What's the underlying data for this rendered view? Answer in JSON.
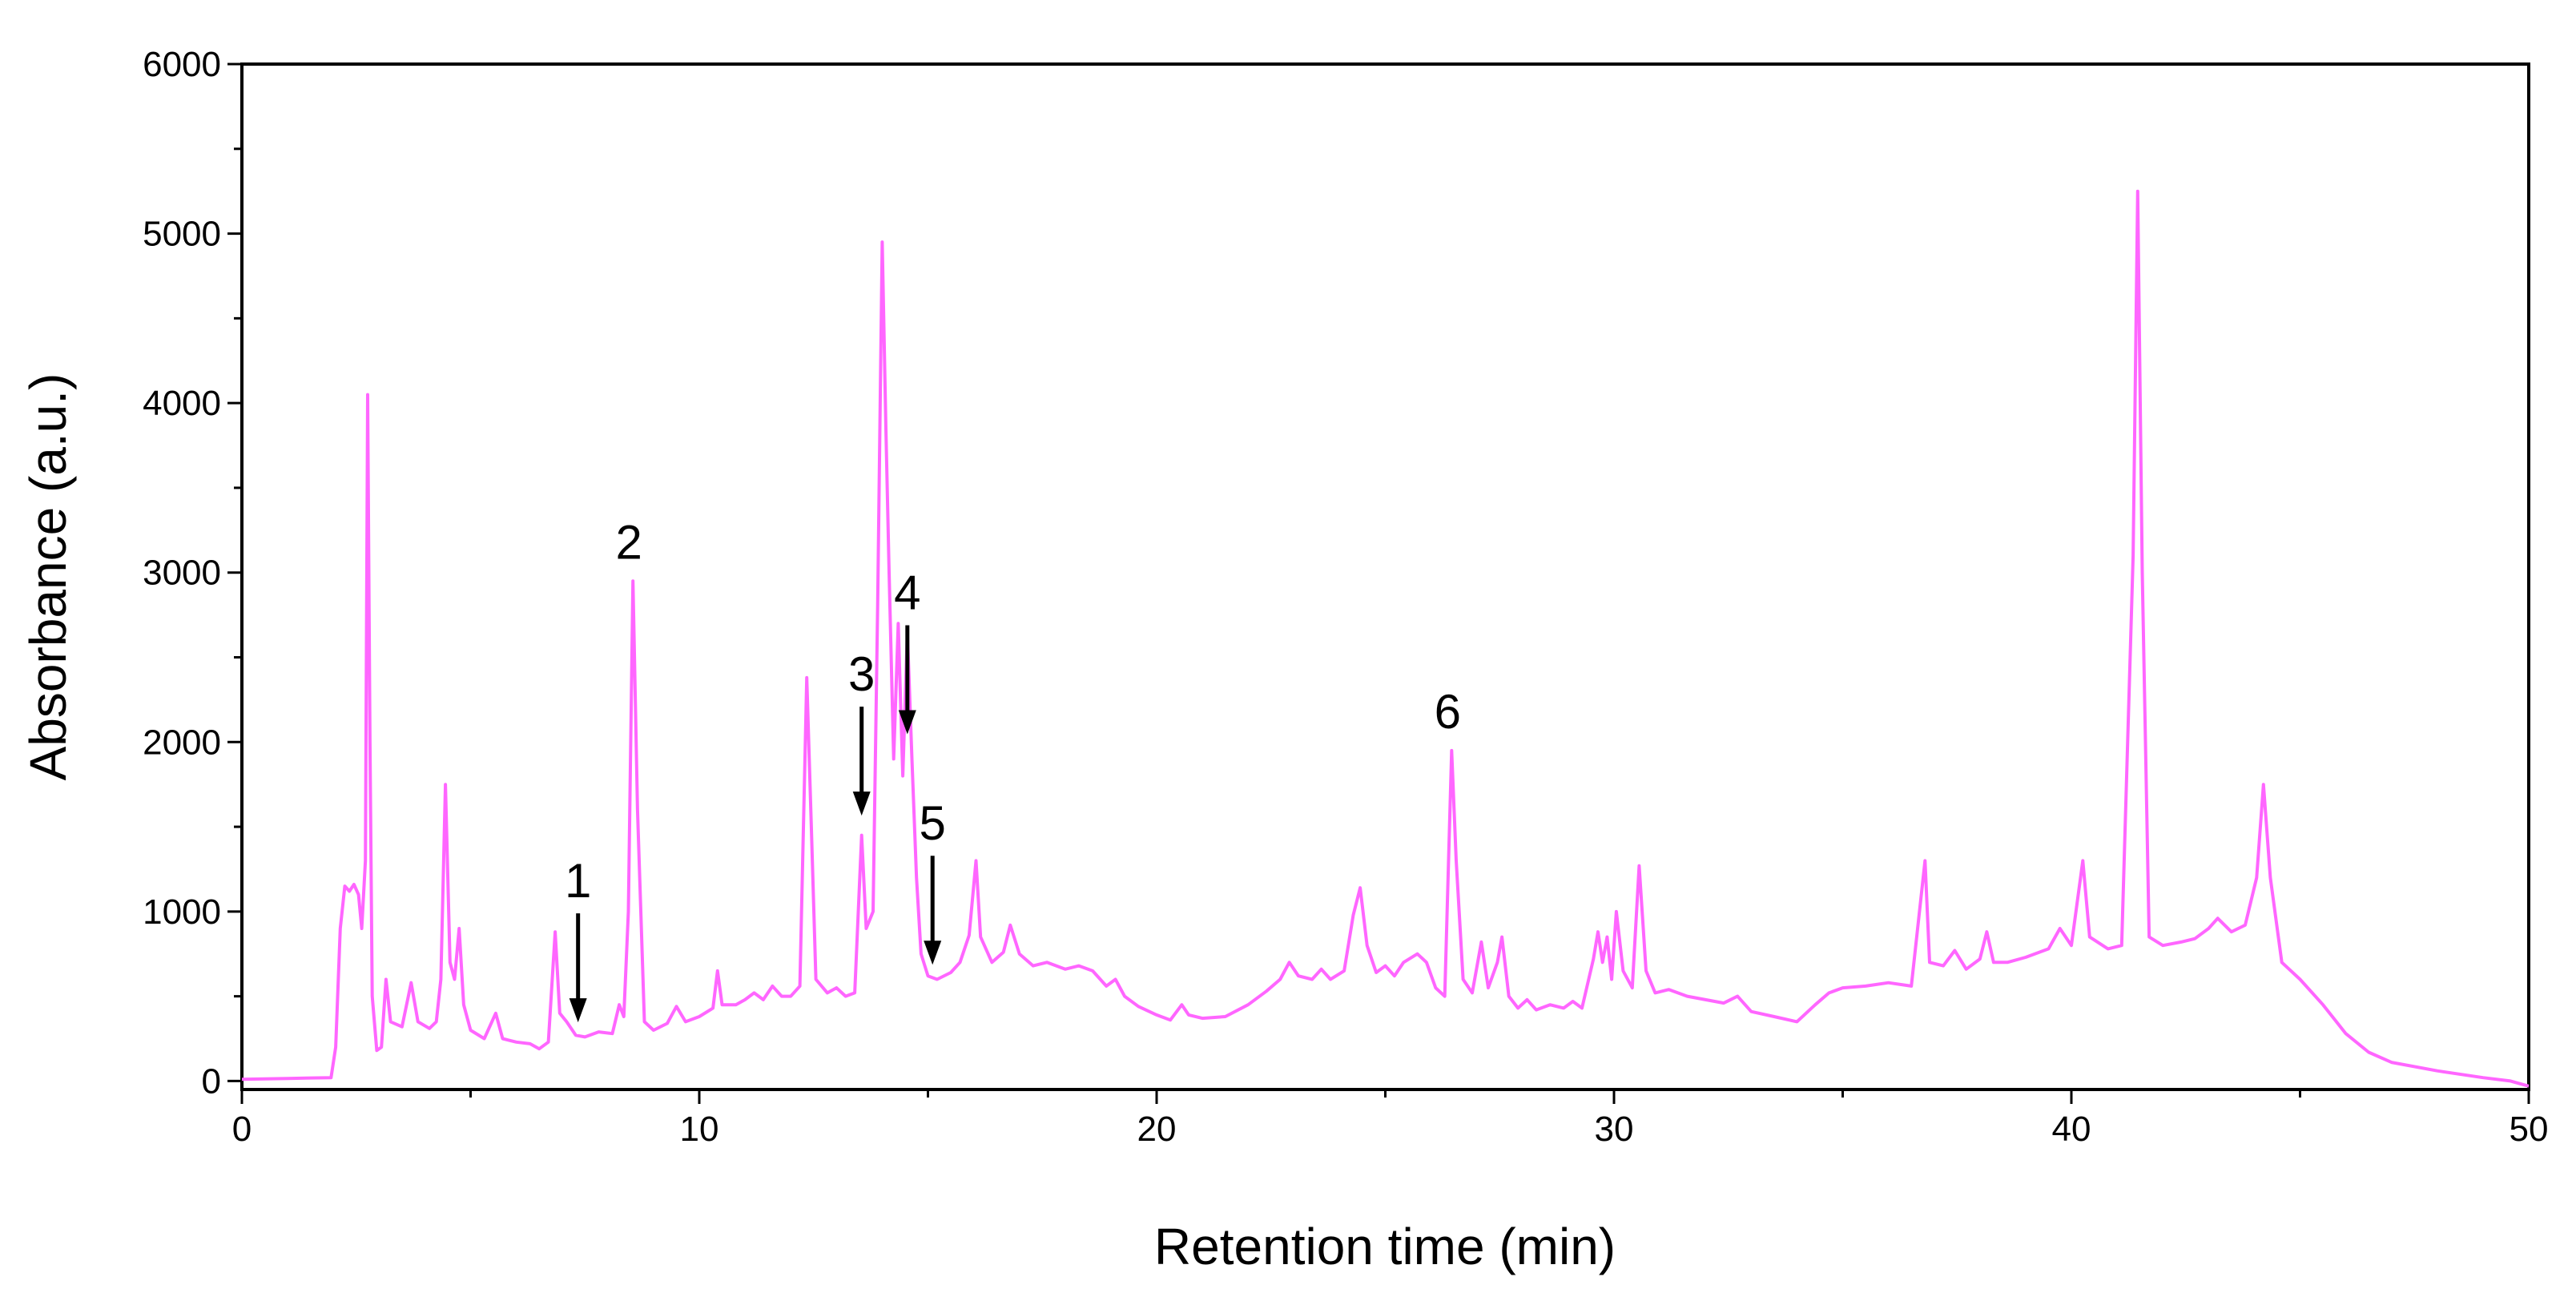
{
  "colors": {
    "trace": "#FF66FF",
    "axis": "#000000",
    "background": "#FFFFFF"
  },
  "chart_data": {
    "type": "line",
    "xlabel": "Retention time (min)",
    "ylabel": "Absorbance (a.u.)",
    "xlim": [
      0,
      50
    ],
    "ylim": [
      -50,
      6000
    ],
    "xticks": [
      0,
      10,
      20,
      30,
      40,
      50
    ],
    "yticks": [
      0,
      1000,
      2000,
      3000,
      4000,
      5000,
      6000
    ],
    "grid": false,
    "legend": "none",
    "series": [
      {
        "color": "#FF66FF",
        "points": [
          [
            0,
            10
          ],
          [
            1.0,
            15
          ],
          [
            1.95,
            20
          ],
          [
            2.05,
            200
          ],
          [
            2.15,
            900
          ],
          [
            2.25,
            1150
          ],
          [
            2.35,
            1120
          ],
          [
            2.45,
            1160
          ],
          [
            2.55,
            1100
          ],
          [
            2.62,
            900
          ],
          [
            2.7,
            1300
          ],
          [
            2.75,
            4050
          ],
          [
            2.8,
            2000
          ],
          [
            2.85,
            500
          ],
          [
            2.95,
            180
          ],
          [
            3.05,
            200
          ],
          [
            3.15,
            600
          ],
          [
            3.25,
            350
          ],
          [
            3.5,
            320
          ],
          [
            3.7,
            580
          ],
          [
            3.85,
            350
          ],
          [
            4.1,
            310
          ],
          [
            4.25,
            350
          ],
          [
            4.35,
            600
          ],
          [
            4.45,
            1750
          ],
          [
            4.55,
            700
          ],
          [
            4.65,
            600
          ],
          [
            4.75,
            900
          ],
          [
            4.85,
            450
          ],
          [
            5.0,
            300
          ],
          [
            5.3,
            250
          ],
          [
            5.55,
            400
          ],
          [
            5.7,
            250
          ],
          [
            6.0,
            230
          ],
          [
            6.3,
            220
          ],
          [
            6.5,
            190
          ],
          [
            6.7,
            230
          ],
          [
            6.85,
            880
          ],
          [
            6.95,
            400
          ],
          [
            7.1,
            350
          ],
          [
            7.3,
            270
          ],
          [
            7.5,
            260
          ],
          [
            7.8,
            290
          ],
          [
            8.1,
            280
          ],
          [
            8.25,
            450
          ],
          [
            8.35,
            380
          ],
          [
            8.45,
            1000
          ],
          [
            8.55,
            2950
          ],
          [
            8.65,
            1600
          ],
          [
            8.8,
            350
          ],
          [
            9.0,
            300
          ],
          [
            9.3,
            340
          ],
          [
            9.5,
            440
          ],
          [
            9.7,
            350
          ],
          [
            10.0,
            380
          ],
          [
            10.3,
            430
          ],
          [
            10.4,
            650
          ],
          [
            10.5,
            450
          ],
          [
            10.8,
            450
          ],
          [
            11.0,
            480
          ],
          [
            11.2,
            520
          ],
          [
            11.4,
            480
          ],
          [
            11.6,
            560
          ],
          [
            11.8,
            500
          ],
          [
            12.0,
            500
          ],
          [
            12.2,
            560
          ],
          [
            12.35,
            2380
          ],
          [
            12.45,
            1500
          ],
          [
            12.55,
            600
          ],
          [
            12.8,
            520
          ],
          [
            13.0,
            550
          ],
          [
            13.2,
            500
          ],
          [
            13.4,
            520
          ],
          [
            13.55,
            1450
          ],
          [
            13.65,
            900
          ],
          [
            13.8,
            1000
          ],
          [
            13.9,
            2800
          ],
          [
            14.0,
            4950
          ],
          [
            14.08,
            3850
          ],
          [
            14.15,
            3000
          ],
          [
            14.25,
            1900
          ],
          [
            14.35,
            2700
          ],
          [
            14.45,
            1800
          ],
          [
            14.55,
            2650
          ],
          [
            14.65,
            1900
          ],
          [
            14.75,
            1200
          ],
          [
            14.85,
            750
          ],
          [
            15.0,
            620
          ],
          [
            15.2,
            600
          ],
          [
            15.5,
            640
          ],
          [
            15.7,
            700
          ],
          [
            15.9,
            860
          ],
          [
            16.05,
            1300
          ],
          [
            16.15,
            850
          ],
          [
            16.4,
            700
          ],
          [
            16.65,
            760
          ],
          [
            16.8,
            920
          ],
          [
            17.0,
            750
          ],
          [
            17.3,
            680
          ],
          [
            17.6,
            700
          ],
          [
            18.0,
            660
          ],
          [
            18.3,
            680
          ],
          [
            18.6,
            650
          ],
          [
            18.9,
            560
          ],
          [
            19.1,
            600
          ],
          [
            19.3,
            500
          ],
          [
            19.6,
            440
          ],
          [
            20.0,
            390
          ],
          [
            20.3,
            360
          ],
          [
            20.55,
            450
          ],
          [
            20.7,
            390
          ],
          [
            21.0,
            370
          ],
          [
            21.5,
            380
          ],
          [
            22.0,
            450
          ],
          [
            22.4,
            530
          ],
          [
            22.7,
            600
          ],
          [
            22.9,
            700
          ],
          [
            23.1,
            620
          ],
          [
            23.4,
            600
          ],
          [
            23.6,
            660
          ],
          [
            23.8,
            600
          ],
          [
            24.1,
            650
          ],
          [
            24.3,
            980
          ],
          [
            24.45,
            1140
          ],
          [
            24.6,
            800
          ],
          [
            24.8,
            640
          ],
          [
            25.0,
            680
          ],
          [
            25.2,
            620
          ],
          [
            25.4,
            700
          ],
          [
            25.7,
            750
          ],
          [
            25.9,
            700
          ],
          [
            26.1,
            550
          ],
          [
            26.3,
            500
          ],
          [
            26.45,
            1950
          ],
          [
            26.55,
            1300
          ],
          [
            26.7,
            600
          ],
          [
            26.9,
            520
          ],
          [
            27.1,
            820
          ],
          [
            27.25,
            550
          ],
          [
            27.45,
            700
          ],
          [
            27.55,
            850
          ],
          [
            27.7,
            500
          ],
          [
            27.9,
            430
          ],
          [
            28.1,
            480
          ],
          [
            28.3,
            420
          ],
          [
            28.6,
            450
          ],
          [
            28.9,
            430
          ],
          [
            29.1,
            470
          ],
          [
            29.3,
            430
          ],
          [
            29.55,
            720
          ],
          [
            29.65,
            880
          ],
          [
            29.75,
            700
          ],
          [
            29.85,
            850
          ],
          [
            29.95,
            600
          ],
          [
            30.05,
            1000
          ],
          [
            30.2,
            650
          ],
          [
            30.4,
            550
          ],
          [
            30.55,
            1270
          ],
          [
            30.7,
            650
          ],
          [
            30.9,
            520
          ],
          [
            31.2,
            540
          ],
          [
            31.6,
            500
          ],
          [
            32.0,
            480
          ],
          [
            32.4,
            460
          ],
          [
            32.7,
            500
          ],
          [
            33.0,
            410
          ],
          [
            33.5,
            380
          ],
          [
            34.0,
            350
          ],
          [
            34.4,
            450
          ],
          [
            34.7,
            520
          ],
          [
            35.0,
            550
          ],
          [
            35.5,
            560
          ],
          [
            36.0,
            580
          ],
          [
            36.5,
            560
          ],
          [
            36.8,
            1300
          ],
          [
            36.9,
            700
          ],
          [
            37.2,
            680
          ],
          [
            37.45,
            770
          ],
          [
            37.7,
            660
          ],
          [
            38.0,
            720
          ],
          [
            38.15,
            880
          ],
          [
            38.3,
            700
          ],
          [
            38.6,
            700
          ],
          [
            39.0,
            730
          ],
          [
            39.5,
            780
          ],
          [
            39.75,
            900
          ],
          [
            40.0,
            800
          ],
          [
            40.25,
            1300
          ],
          [
            40.4,
            850
          ],
          [
            40.8,
            780
          ],
          [
            41.1,
            800
          ],
          [
            41.35,
            3100
          ],
          [
            41.45,
            5250
          ],
          [
            41.55,
            3000
          ],
          [
            41.7,
            850
          ],
          [
            42.0,
            800
          ],
          [
            42.4,
            820
          ],
          [
            42.7,
            840
          ],
          [
            43.0,
            900
          ],
          [
            43.2,
            960
          ],
          [
            43.5,
            880
          ],
          [
            43.8,
            920
          ],
          [
            44.05,
            1200
          ],
          [
            44.2,
            1750
          ],
          [
            44.35,
            1200
          ],
          [
            44.6,
            700
          ],
          [
            45.0,
            600
          ],
          [
            45.5,
            450
          ],
          [
            46.0,
            280
          ],
          [
            46.5,
            170
          ],
          [
            47.0,
            110
          ],
          [
            48.0,
            60
          ],
          [
            49.0,
            20
          ],
          [
            49.6,
            0
          ],
          [
            50.0,
            -30
          ]
        ]
      }
    ],
    "annotations": [
      {
        "label": "1",
        "x": 7.35,
        "y": 280,
        "arrow": true
      },
      {
        "label": "2",
        "x": 8.55,
        "y": 2950,
        "arrow": false
      },
      {
        "label": "3",
        "x": 13.55,
        "y": 1500,
        "arrow": true
      },
      {
        "label": "4",
        "x": 14.55,
        "y": 1980,
        "arrow": true
      },
      {
        "label": "5",
        "x": 15.1,
        "y": 620,
        "arrow": true
      },
      {
        "label": "6",
        "x": 26.45,
        "y": 1950,
        "arrow": false
      }
    ]
  }
}
